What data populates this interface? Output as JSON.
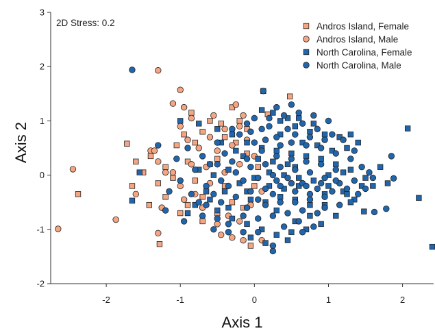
{
  "chart_data": {
    "type": "scatter",
    "annotation": "2D Stress: 0.2",
    "xlabel": "Axis 1",
    "ylabel": "Axis 2",
    "xlim": [
      -2.75,
      2.42
    ],
    "ylim": [
      -2,
      3
    ],
    "xticks": [
      -2,
      -1,
      0,
      1,
      2
    ],
    "yticks": [
      -2,
      -1,
      0,
      1,
      2,
      3
    ],
    "grid": false,
    "legend_position": "top-right",
    "series": [
      {
        "name": "Andros Island, Female",
        "marker": "square",
        "color": "#f4a582",
        "points": [
          [
            0.48,
            1.45
          ],
          [
            0.18,
            1.12
          ],
          [
            -1.72,
            0.58
          ],
          [
            -2.38,
            -0.35
          ],
          [
            -1.28,
            -1.27
          ],
          [
            -1.42,
            -0.55
          ],
          [
            -1.6,
            0.25
          ],
          [
            -1.4,
            0.35
          ],
          [
            -1.2,
            0.15
          ],
          [
            -1.1,
            -0.05
          ],
          [
            -0.9,
            0.25
          ],
          [
            -0.8,
            0.6
          ],
          [
            -0.7,
            0.8
          ],
          [
            -0.6,
            1.0
          ],
          [
            -0.5,
            0.3
          ],
          [
            -0.4,
            0.7
          ],
          [
            -0.3,
            1.25
          ],
          [
            -0.2,
            1.0
          ],
          [
            -0.1,
            0.4
          ],
          [
            0.0,
            -0.2
          ],
          [
            -0.3,
            -0.5
          ],
          [
            -0.5,
            -0.7
          ],
          [
            -0.7,
            -0.4
          ],
          [
            -0.8,
            -0.1
          ],
          [
            -0.6,
            0.2
          ],
          [
            -0.4,
            -0.2
          ],
          [
            -1.3,
            -0.15
          ],
          [
            -1.5,
            0.05
          ],
          [
            -0.95,
            0.75
          ],
          [
            -0.85,
            1.15
          ],
          [
            -1.05,
            0.55
          ],
          [
            -0.45,
            0.95
          ],
          [
            -0.25,
            0.6
          ],
          [
            0.05,
            0.15
          ],
          [
            -0.15,
            -0.6
          ],
          [
            -0.05,
            -1.3
          ],
          [
            -0.7,
            -0.85
          ],
          [
            -1.0,
            -0.7
          ],
          [
            -1.2,
            -0.4
          ],
          [
            -1.65,
            -0.2
          ],
          [
            -0.9,
            -0.55
          ],
          [
            -0.1,
            0.85
          ]
        ]
      },
      {
        "name": "Andros Island, Male",
        "marker": "circle",
        "color": "#f4a582",
        "points": [
          [
            -1.3,
            1.93
          ],
          [
            -2.45,
            0.11
          ],
          [
            -2.65,
            -0.99
          ],
          [
            -1.87,
            -0.82
          ],
          [
            -1.3,
            -1.07
          ],
          [
            -1.0,
            1.57
          ],
          [
            -1.1,
            1.32
          ],
          [
            -0.95,
            1.25
          ],
          [
            -0.85,
            1.05
          ],
          [
            -1.0,
            0.9
          ],
          [
            -0.9,
            0.65
          ],
          [
            -0.75,
            0.5
          ],
          [
            -0.6,
            0.7
          ],
          [
            -0.5,
            0.45
          ],
          [
            -0.4,
            0.85
          ],
          [
            -0.3,
            0.55
          ],
          [
            -0.2,
            0.9
          ],
          [
            -0.1,
            0.65
          ],
          [
            0.0,
            0.35
          ],
          [
            -0.2,
            0.2
          ],
          [
            -0.4,
            0.05
          ],
          [
            -0.6,
            -0.15
          ],
          [
            -0.8,
            -0.35
          ],
          [
            -1.0,
            -0.2
          ],
          [
            -1.2,
            0.05
          ],
          [
            -1.4,
            0.45
          ],
          [
            -1.25,
            -0.6
          ],
          [
            -0.95,
            -0.45
          ],
          [
            -0.7,
            -0.6
          ],
          [
            -0.5,
            -0.9
          ],
          [
            -0.3,
            -1.15
          ],
          [
            -0.45,
            -1.1
          ],
          [
            -0.2,
            -0.85
          ],
          [
            -0.05,
            -0.55
          ],
          [
            0.1,
            -1.2
          ],
          [
            0.1,
            -0.3
          ],
          [
            -0.15,
            1.1
          ],
          [
            -1.35,
            0.45
          ],
          [
            -0.65,
            0.15
          ],
          [
            -1.3,
            0.25
          ],
          [
            -0.55,
            1.1
          ],
          [
            -0.85,
            0.2
          ],
          [
            -0.25,
            1.3
          ],
          [
            -0.35,
            -0.75
          ],
          [
            -1.1,
            0.05
          ],
          [
            -1.6,
            -0.35
          ],
          [
            -0.15,
            -1.2
          ]
        ]
      },
      {
        "name": "North Carolina, Female",
        "marker": "square",
        "color": "#2166ac",
        "points": [
          [
            0.12,
            1.55
          ],
          [
            2.07,
            0.86
          ],
          [
            2.22,
            -0.42
          ],
          [
            2.42,
            -1.32
          ],
          [
            1.48,
            -0.67
          ],
          [
            -1.65,
            -0.47
          ],
          [
            -1.55,
            0.05
          ],
          [
            -1.0,
            1.0
          ],
          [
            -0.75,
            0.95
          ],
          [
            -0.5,
            0.85
          ],
          [
            -0.3,
            0.75
          ],
          [
            -0.1,
            0.6
          ],
          [
            0.1,
            0.5
          ],
          [
            0.3,
            0.45
          ],
          [
            0.5,
            0.4
          ],
          [
            0.7,
            0.35
          ],
          [
            0.9,
            0.3
          ],
          [
            1.1,
            0.2
          ],
          [
            1.3,
            0.1
          ],
          [
            1.5,
            -0.05
          ],
          [
            1.35,
            -0.45
          ],
          [
            1.2,
            -0.3
          ],
          [
            1.0,
            -0.2
          ],
          [
            0.8,
            -0.1
          ],
          [
            0.6,
            -0.05
          ],
          [
            0.4,
            0.0
          ],
          [
            0.2,
            0.05
          ],
          [
            0.0,
            -0.05
          ],
          [
            -0.2,
            -0.15
          ],
          [
            -0.4,
            -0.3
          ],
          [
            -0.6,
            -0.45
          ],
          [
            -0.8,
            -0.55
          ],
          [
            -0.5,
            -0.65
          ],
          [
            -0.3,
            -0.8
          ],
          [
            -0.1,
            -0.9
          ],
          [
            0.1,
            -1.0
          ],
          [
            0.3,
            -1.1
          ],
          [
            0.5,
            -1.05
          ],
          [
            0.7,
            -1.0
          ],
          [
            0.9,
            -0.9
          ],
          [
            1.1,
            -0.75
          ],
          [
            0.35,
            0.75
          ],
          [
            0.55,
            0.9
          ],
          [
            0.75,
            0.8
          ],
          [
            0.95,
            0.75
          ],
          [
            1.15,
            0.7
          ],
          [
            1.25,
            0.5
          ],
          [
            1.05,
            0.45
          ],
          [
            0.85,
            0.55
          ],
          [
            0.65,
            0.6
          ],
          [
            0.45,
            0.2
          ],
          [
            0.25,
            0.25
          ],
          [
            0.05,
            0.3
          ],
          [
            -0.15,
            0.35
          ],
          [
            -0.35,
            0.1
          ],
          [
            -0.55,
            0.0
          ],
          [
            -0.75,
            0.1
          ],
          [
            -0.35,
            -0.6
          ],
          [
            -0.05,
            -0.45
          ],
          [
            0.15,
            -0.5
          ],
          [
            0.35,
            -0.4
          ],
          [
            0.55,
            -0.45
          ],
          [
            0.75,
            -0.55
          ],
          [
            0.95,
            -0.55
          ],
          [
            0.25,
            1.15
          ],
          [
            0.45,
            1.05
          ],
          [
            0.6,
            1.05
          ],
          [
            1.3,
            0.75
          ],
          [
            1.4,
            0.6
          ],
          [
            1.6,
            -0.2
          ],
          [
            1.8,
            -0.15
          ],
          [
            0.2,
            -0.2
          ],
          [
            -0.1,
            -0.3
          ],
          [
            -0.65,
            -0.3
          ],
          [
            -0.9,
            -0.7
          ],
          [
            0.1,
            1.2
          ],
          [
            0.35,
            1.0
          ],
          [
            0.8,
            0.95
          ],
          [
            1.2,
            0.05
          ],
          [
            1.0,
            0.0
          ],
          [
            0.6,
            -0.2
          ],
          [
            0.4,
            -0.25
          ],
          [
            0.45,
            -1.2
          ],
          [
            0.15,
            -1.25
          ],
          [
            -0.05,
            -1.15
          ],
          [
            0.55,
            -0.85
          ],
          [
            0.75,
            -0.75
          ],
          [
            1.3,
            -0.5
          ],
          [
            1.45,
            -0.2
          ],
          [
            1.7,
            0.15
          ],
          [
            1.25,
            -0.35
          ],
          [
            0.95,
            -0.35
          ],
          [
            0.55,
            0.15
          ],
          [
            0.3,
            -0.65
          ],
          [
            -0.25,
            0.45
          ],
          [
            -0.45,
            0.6
          ]
        ]
      },
      {
        "name": "North Carolina, Male",
        "marker": "circle",
        "color": "#2166ac",
        "points": [
          [
            -1.65,
            1.94
          ],
          [
            0.12,
            1.55
          ],
          [
            1.85,
            0.35
          ],
          [
            1.78,
            -0.62
          ],
          [
            1.88,
            -0.06
          ],
          [
            1.62,
            -0.68
          ],
          [
            -0.9,
            0.5
          ],
          [
            -0.7,
            0.35
          ],
          [
            -0.5,
            0.6
          ],
          [
            -0.3,
            0.85
          ],
          [
            -0.1,
            0.95
          ],
          [
            0.1,
            0.85
          ],
          [
            0.3,
            0.7
          ],
          [
            0.5,
            0.6
          ],
          [
            0.7,
            0.55
          ],
          [
            0.9,
            0.5
          ],
          [
            1.1,
            0.4
          ],
          [
            1.3,
            0.3
          ],
          [
            1.45,
            0.15
          ],
          [
            1.5,
            -0.25
          ],
          [
            1.35,
            -0.1
          ],
          [
            1.15,
            -0.15
          ],
          [
            0.95,
            -0.05
          ],
          [
            0.75,
            0.05
          ],
          [
            0.55,
            0.1
          ],
          [
            0.35,
            0.15
          ],
          [
            0.15,
            0.2
          ],
          [
            -0.05,
            0.15
          ],
          [
            -0.25,
            0.05
          ],
          [
            -0.45,
            -0.1
          ],
          [
            -0.65,
            -0.2
          ],
          [
            -0.85,
            -0.35
          ],
          [
            -0.65,
            -0.55
          ],
          [
            -0.45,
            -0.5
          ],
          [
            -0.25,
            -0.4
          ],
          [
            -0.05,
            -0.3
          ],
          [
            0.15,
            -0.25
          ],
          [
            0.35,
            -0.2
          ],
          [
            0.55,
            -0.3
          ],
          [
            0.75,
            -0.35
          ],
          [
            0.95,
            -0.4
          ],
          [
            1.15,
            -0.55
          ],
          [
            0.85,
            -0.7
          ],
          [
            0.65,
            -0.65
          ],
          [
            0.45,
            -0.7
          ],
          [
            0.25,
            -0.75
          ],
          [
            0.05,
            -0.8
          ],
          [
            -0.15,
            -0.75
          ],
          [
            -0.35,
            -0.9
          ],
          [
            -0.55,
            -1.0
          ],
          [
            -0.35,
            -1.05
          ],
          [
            0.25,
            -1.3
          ],
          [
            0.25,
            -1.4
          ],
          [
            0.65,
            -1.05
          ],
          [
            0.45,
            0.85
          ],
          [
            0.65,
            0.95
          ],
          [
            0.85,
            0.85
          ],
          [
            1.05,
            0.75
          ],
          [
            1.2,
            0.65
          ],
          [
            0.2,
            1.05
          ],
          [
            0.0,
            1.05
          ],
          [
            -0.2,
            0.75
          ],
          [
            -0.4,
            0.4
          ],
          [
            -0.6,
            0.2
          ],
          [
            -0.8,
            0.1
          ],
          [
            -1.0,
            -0.1
          ],
          [
            -1.15,
            -0.3
          ],
          [
            0.1,
            0.45
          ],
          [
            0.3,
            0.35
          ],
          [
            0.5,
            0.3
          ],
          [
            0.7,
            0.25
          ],
          [
            0.9,
            0.2
          ],
          [
            1.1,
            0.1
          ],
          [
            1.25,
            -0.25
          ],
          [
            1.05,
            -0.3
          ],
          [
            0.85,
            -0.25
          ],
          [
            0.65,
            -0.15
          ],
          [
            0.45,
            -0.05
          ],
          [
            0.25,
            0.0
          ],
          [
            0.05,
            -0.05
          ],
          [
            -0.15,
            -0.1
          ],
          [
            -0.35,
            -0.2
          ],
          [
            -0.55,
            -0.35
          ],
          [
            -0.75,
            -0.5
          ],
          [
            0.15,
            -0.55
          ],
          [
            0.35,
            -0.5
          ],
          [
            0.55,
            -0.5
          ],
          [
            0.75,
            -0.45
          ],
          [
            0.95,
            -0.6
          ],
          [
            0.4,
            -0.95
          ],
          [
            0.6,
            -0.85
          ],
          [
            0.8,
            -0.95
          ],
          [
            -0.1,
            -0.6
          ],
          [
            0.0,
            0.6
          ],
          [
            -0.05,
            0.8
          ],
          [
            0.35,
            0.55
          ],
          [
            0.55,
            0.75
          ],
          [
            0.75,
            0.7
          ],
          [
            0.95,
            0.65
          ],
          [
            1.35,
            0.45
          ],
          [
            1.55,
            0.05
          ],
          [
            1.4,
            -0.35
          ],
          [
            1.6,
            -0.05
          ],
          [
            0.4,
            1.1
          ],
          [
            0.6,
            1.15
          ],
          [
            0.8,
            1.1
          ],
          [
            -0.5,
            0.2
          ],
          [
            -0.3,
            0.25
          ],
          [
            -0.1,
            0.3
          ],
          [
            0.3,
            -0.1
          ],
          [
            0.5,
            -0.15
          ],
          [
            0.7,
            -0.2
          ],
          [
            0.9,
            -0.15
          ],
          [
            1.1,
            -0.1
          ],
          [
            -1.2,
            -0.65
          ],
          [
            -0.95,
            -0.85
          ],
          [
            -0.7,
            -0.75
          ],
          [
            -0.5,
            -0.8
          ],
          [
            0.05,
            -1.05
          ],
          [
            -0.15,
            -1.05
          ],
          [
            -1.3,
            0.55
          ],
          [
            -1.05,
            0.3
          ],
          [
            0.2,
            0.9
          ],
          [
            1.0,
            1.0
          ],
          [
            0.5,
            1.3
          ],
          [
            0.3,
            1.25
          ],
          [
            0.15,
            0.65
          ],
          [
            0.25,
            -0.35
          ],
          [
            0.05,
            -0.45
          ]
        ]
      }
    ]
  }
}
